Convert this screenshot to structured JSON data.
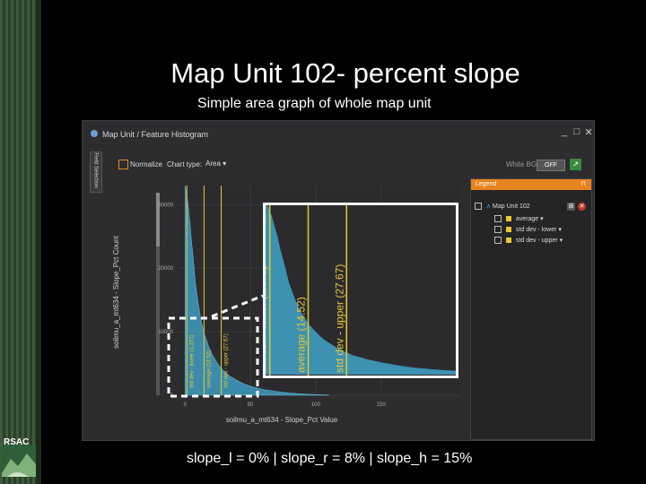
{
  "slide": {
    "title": "Map Unit 102- percent slope",
    "subtitle": "Simple area graph of whole map unit",
    "footer": "slope_l = 0% | slope_r = 8% | slope_h = 15%",
    "logo_text": "RSAC"
  },
  "window": {
    "title": "Map Unit / Feature Histogram",
    "side_tab_label": "Field Selection",
    "controls": {
      "minimize": "_",
      "maximize": "□",
      "close": "✕"
    }
  },
  "toolbar": {
    "normalize_label": "Normalize",
    "chart_type_label": "Chart type:",
    "chart_type_value": "Area",
    "white_bg_label": "White BG",
    "white_bg_state": "OFF"
  },
  "legend": {
    "title": "Legend",
    "pin": "⊓",
    "group_label": "Map Unit 102",
    "items": [
      {
        "label": "average",
        "color": "#e8c830"
      },
      {
        "label": "std dev - lower",
        "color": "#e8c830"
      },
      {
        "label": "std dev - upper",
        "color": "#e8c830"
      }
    ]
  },
  "chart_data": {
    "type": "area",
    "xlabel": "soilmu_a_mt634 - Slope_Pct Value",
    "ylabel": "soilmu_a_mt634 - Slope_Pct Count",
    "xlim": [
      -5,
      210
    ],
    "ylim": [
      0,
      33000
    ],
    "x_ticks": [
      "0",
      "50",
      "100",
      "150"
    ],
    "x_tick_values": [
      0,
      50,
      100,
      150
    ],
    "y_ticks": [
      "0",
      "10000",
      "20000",
      "30000"
    ],
    "y_tick_values": [
      0,
      10000,
      20000,
      30000
    ],
    "color": "#3f9cc0",
    "x": [
      0,
      1,
      2,
      3,
      4,
      5,
      6,
      8,
      10,
      12,
      15,
      18,
      20,
      25,
      30,
      35,
      40,
      45,
      50,
      60,
      70,
      80,
      90,
      100,
      110
    ],
    "values": [
      33000,
      32000,
      30500,
      28500,
      26500,
      24000,
      22000,
      17500,
      14500,
      12000,
      9500,
      7700,
      6700,
      4900,
      3700,
      2900,
      2300,
      1800,
      1400,
      900,
      600,
      350,
      200,
      100,
      40
    ],
    "reference_lines": [
      {
        "name": "std dev - lower",
        "x": 1.371,
        "label": "std dev - lower (1.371)"
      },
      {
        "name": "average",
        "x": 14.52,
        "label": "average (14.52)"
      },
      {
        "name": "std dev - upper",
        "x": 27.67,
        "label": "std dev - upper (27.67)"
      }
    ],
    "line_color": "#e8c830"
  }
}
